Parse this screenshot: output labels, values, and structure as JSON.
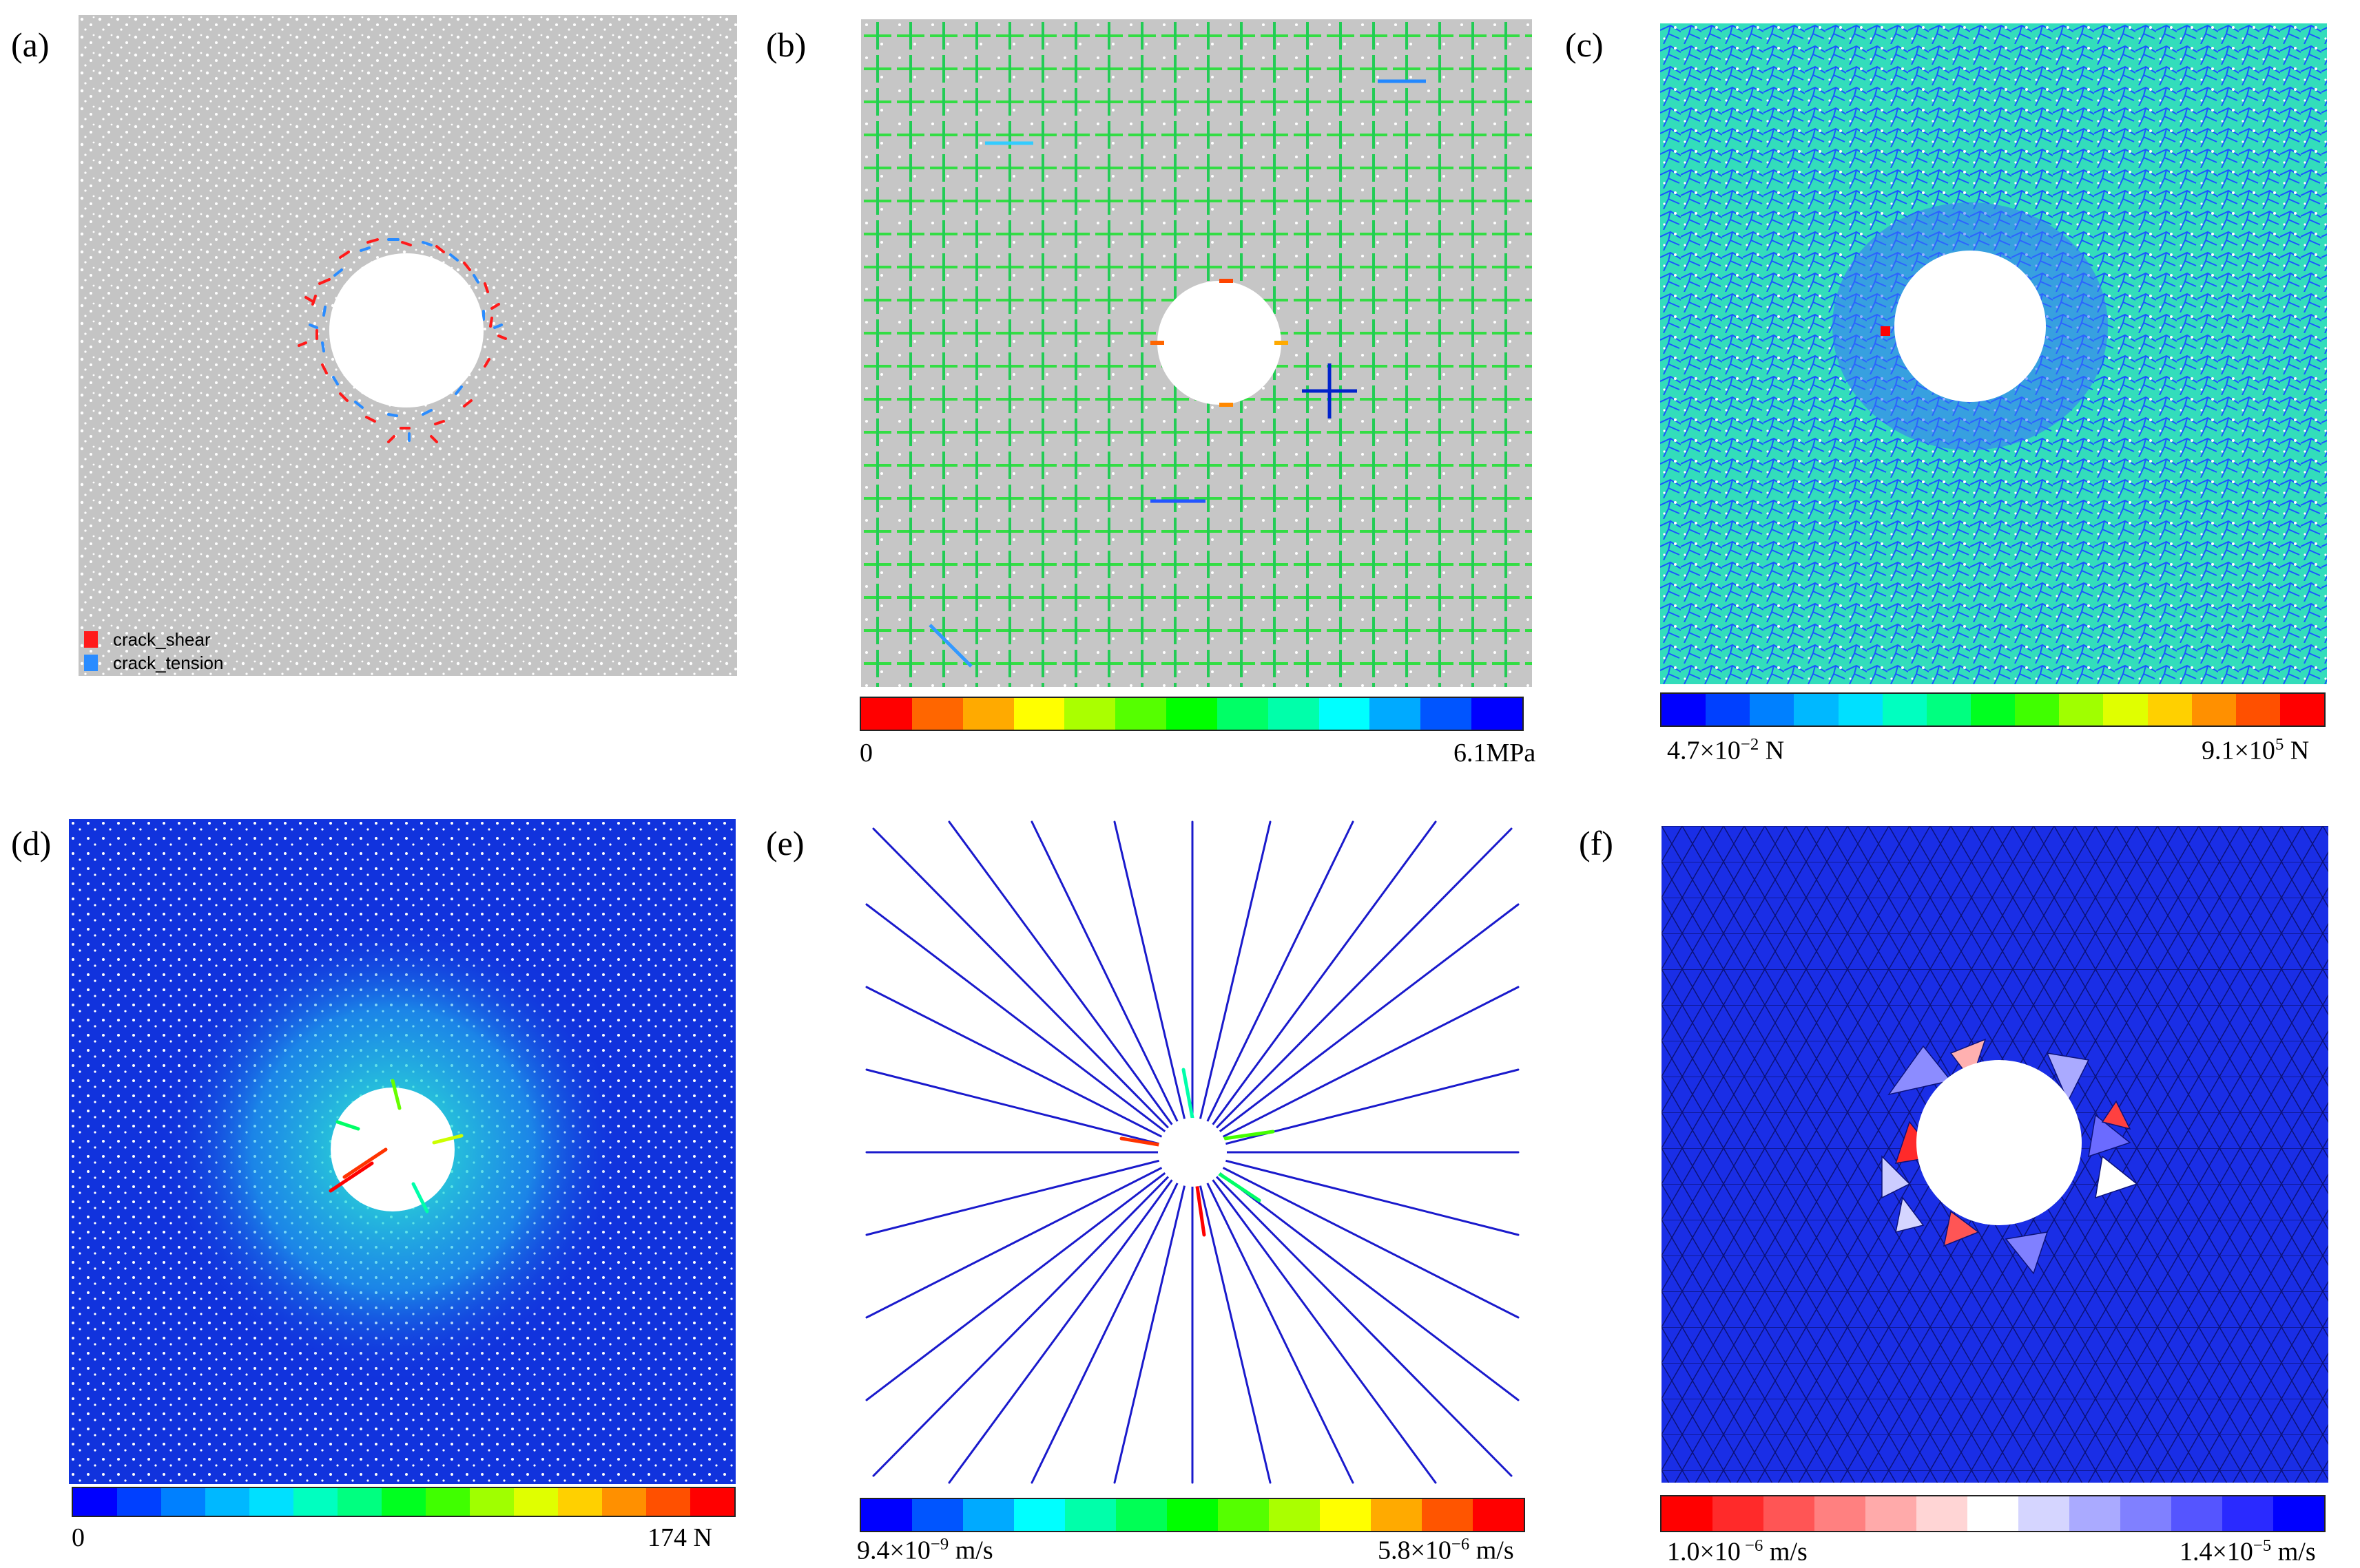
{
  "panels": [
    {
      "label": "(a)"
    },
    {
      "label": "(b)",
      "colorbar": {
        "min": "0",
        "max": "6.1MPa"
      }
    },
    {
      "label": "(c)",
      "colorbar": {
        "min_base": "4.7×10",
        "min_exp": "−2",
        "min_unit": " N",
        "max_base": "9.1×10",
        "max_exp": "5",
        "max_unit": " N"
      }
    },
    {
      "label": "(d)",
      "colorbar": {
        "min": "0",
        "max": "174 N"
      }
    },
    {
      "label": "(e)",
      "colorbar": {
        "min_base": "9.4×10",
        "min_exp": "−9",
        "min_unit": " m/s",
        "max_base": "5.8×10",
        "max_exp": "−6",
        "max_unit": " m/s"
      }
    },
    {
      "label": "(f)",
      "colorbar": {
        "min_base": "1.0×10",
        "min_exp": " −6",
        "min_unit": " m/s",
        "max_base": "1.4×10",
        "max_exp": "−5",
        "max_unit": " m/s"
      }
    }
  ],
  "legend": {
    "items": [
      {
        "label": "crack_shear",
        "color": "#ff1a1a"
      },
      {
        "label": "crack_tension",
        "color": "#2a8cff"
      }
    ]
  },
  "colors": {
    "jet": [
      "#0000ff",
      "#0040ff",
      "#0080ff",
      "#00b8ff",
      "#00e0ff",
      "#00ffc0",
      "#00ff80",
      "#00ff20",
      "#40ff00",
      "#a0ff00",
      "#e0ff00",
      "#ffd000",
      "#ff9000",
      "#ff5000",
      "#ff0000"
    ],
    "b_scale": [
      "#ff0000",
      "#ff6600",
      "#ffaa00",
      "#ffff00",
      "#aaff00",
      "#55ff00",
      "#00ff00",
      "#00ff66",
      "#00ffaa",
      "#00ffff",
      "#00aaff",
      "#0055ff",
      "#0000ff"
    ],
    "e_scale": [
      "#0000ff",
      "#0055ff",
      "#00aaff",
      "#00ffff",
      "#00ffaa",
      "#00ff55",
      "#00ff00",
      "#55ff00",
      "#aaff00",
      "#ffff00",
      "#ffaa00",
      "#ff5500",
      "#ff0000"
    ],
    "f_scale": [
      "#ff0000",
      "#ff2a2a",
      "#ff5555",
      "#ff8080",
      "#ffaaaa",
      "#ffd5d5",
      "#ffffff",
      "#d5d5ff",
      "#aaaaff",
      "#8080ff",
      "#5555ff",
      "#2a2aff",
      "#0000ff"
    ]
  }
}
